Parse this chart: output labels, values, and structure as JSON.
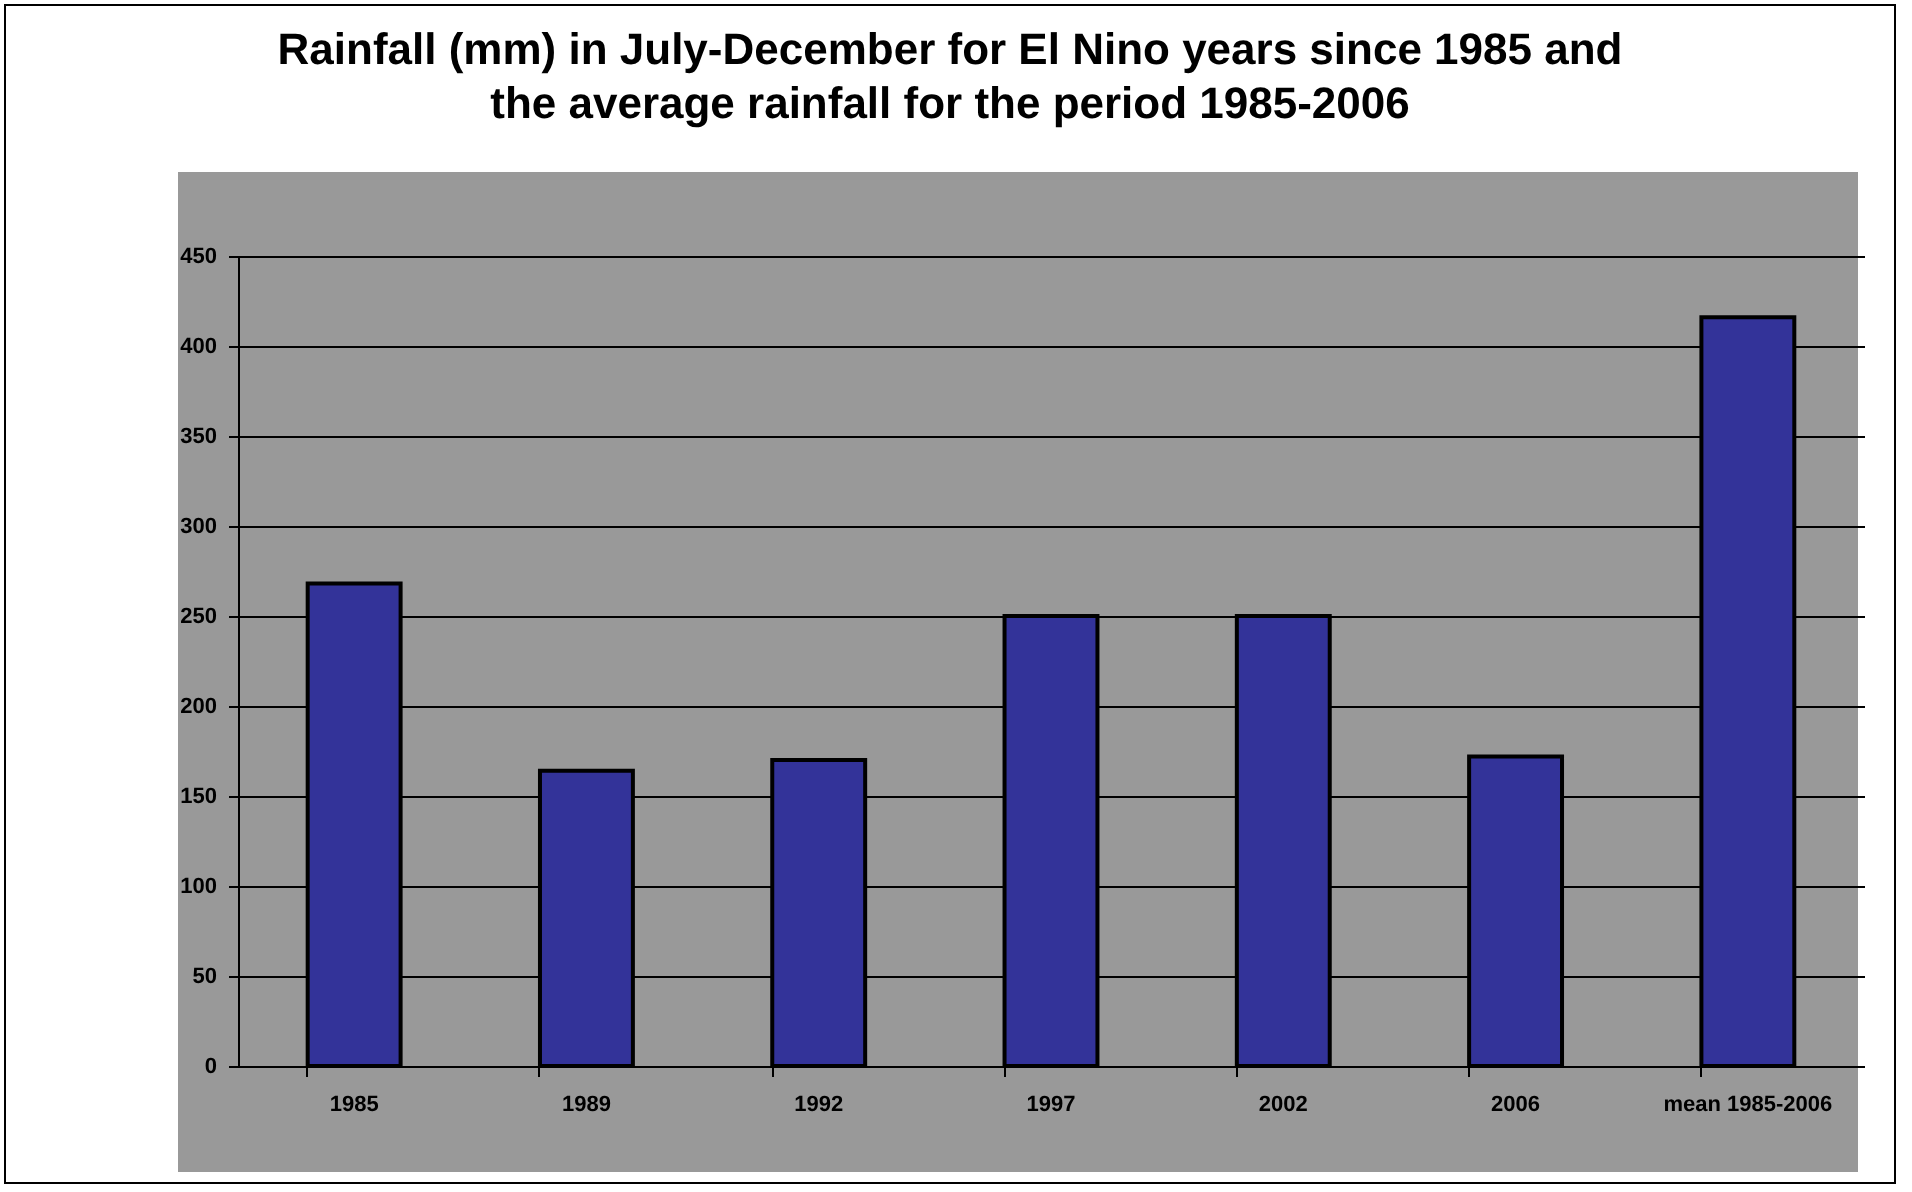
{
  "chart_data": {
    "type": "bar",
    "title": "Rainfall (mm) in July-December for El Nino years since 1985 and the average rainfall for the period 1985-2006",
    "categories": [
      "1985",
      "1989",
      "1992",
      "1997",
      "2002",
      "2006",
      "mean 1985-2006"
    ],
    "values": [
      268,
      164,
      170,
      250,
      250,
      172,
      416
    ],
    "color": "#333399",
    "ylim": [
      0,
      450
    ],
    "yticks": [
      0,
      50,
      100,
      150,
      200,
      250,
      300,
      350,
      400,
      450
    ],
    "grid": "y"
  }
}
